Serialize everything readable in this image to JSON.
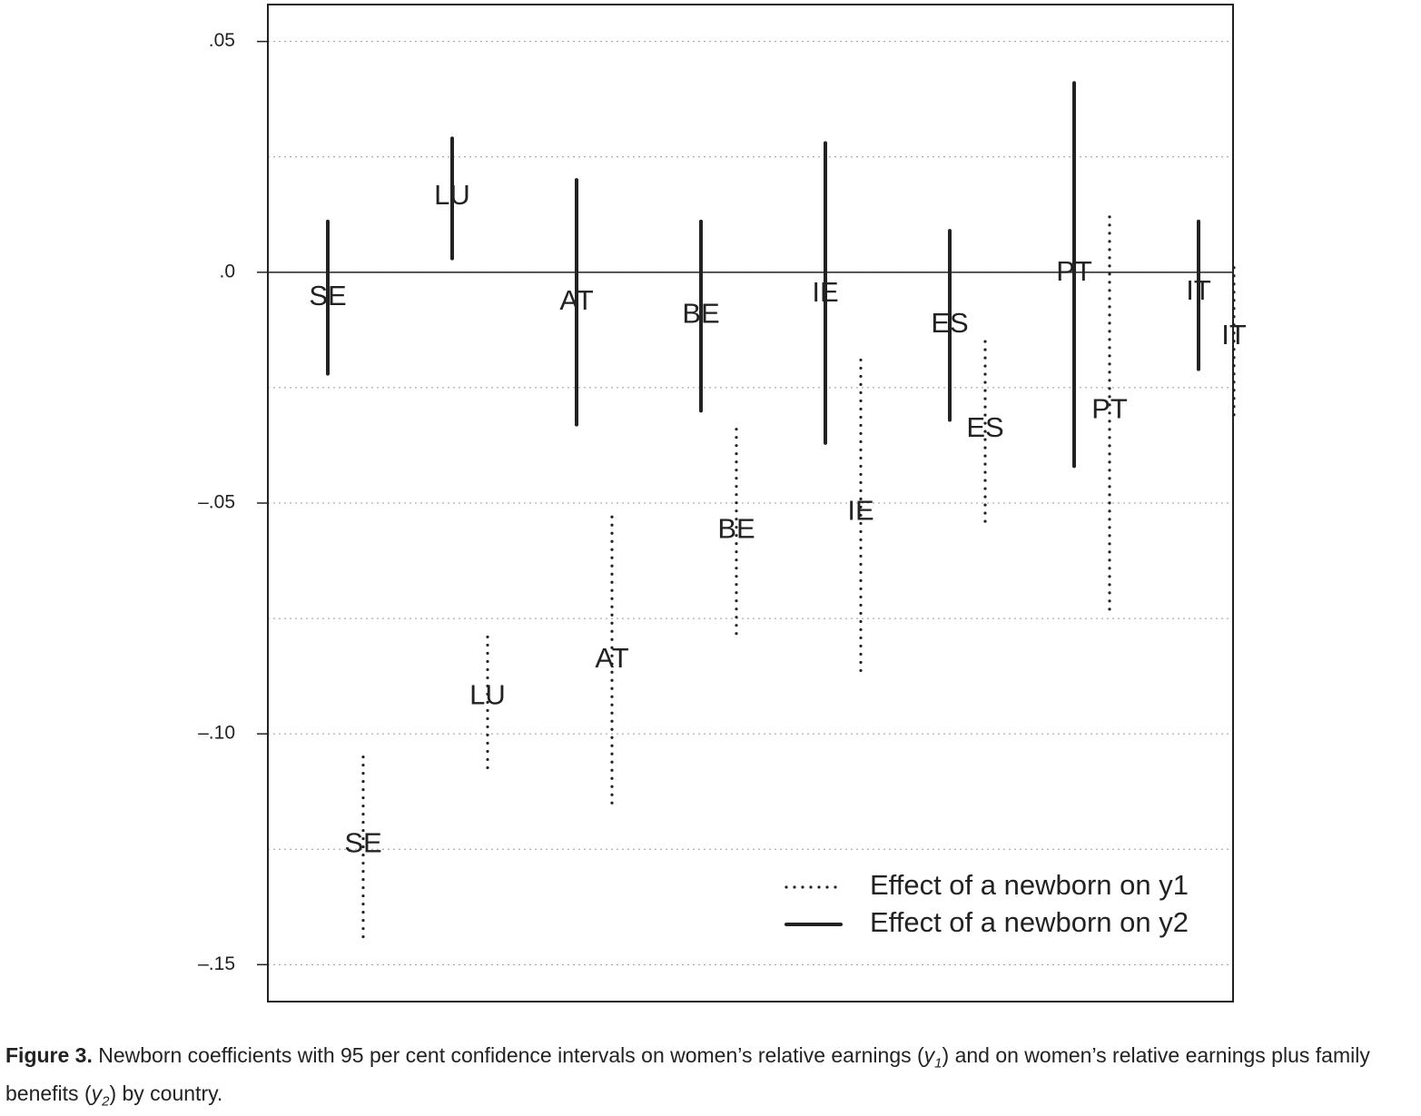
{
  "chart_data": {
    "type": "errorbar",
    "categories": [
      "SE",
      "LU",
      "AT",
      "BE",
      "IE",
      "ES",
      "PT",
      "IT"
    ],
    "series": [
      {
        "name": "Effect of a newborn on y1",
        "style": "dotted",
        "color": "#222222",
        "values": [
          -0.124,
          -0.092,
          -0.084,
          -0.056,
          -0.052,
          -0.034,
          -0.03,
          -0.014
        ],
        "low": [
          -0.145,
          -0.108,
          -0.116,
          -0.079,
          -0.087,
          -0.055,
          -0.073,
          -0.031
        ],
        "high": [
          -0.105,
          -0.079,
          -0.053,
          -0.034,
          -0.019,
          -0.015,
          0.012,
          0.001
        ]
      },
      {
        "name": "Effect of a newborn on y2",
        "style": "solid",
        "color": "#222222",
        "values": [
          -0.0055,
          0.0163,
          -0.0065,
          -0.0093,
          -0.0047,
          -0.0114,
          -0.0002,
          -0.0043
        ],
        "low": [
          -0.022,
          0.003,
          -0.033,
          -0.03,
          -0.037,
          -0.032,
          -0.042,
          -0.021
        ],
        "high": [
          0.011,
          0.029,
          0.02,
          0.011,
          0.028,
          0.009,
          0.041,
          0.011
        ]
      }
    ],
    "ylim": [
      -0.158,
      0.058
    ],
    "yticks": [
      {
        "value": 0.05,
        "label": ".05"
      },
      {
        "value": 0,
        "label": ".0"
      },
      {
        "value": -0.05,
        "label": "–.05"
      },
      {
        "value": -0.1,
        "label": "–.10"
      },
      {
        "value": -0.15,
        "label": "–.15"
      }
    ],
    "minor_grid": [
      0.025,
      -0.025,
      -0.075,
      -0.125
    ],
    "hline": 0,
    "grid": true,
    "legend": "lower right",
    "caption_label": "Figure 3.",
    "caption": [
      "Newborn coefficients with 95 per cent confidence intervals on women’s relative earnings (",
      "y",
      "1",
      ") and on women’s relative earnings plus family benefits (",
      "y",
      "2",
      ") by country."
    ]
  }
}
